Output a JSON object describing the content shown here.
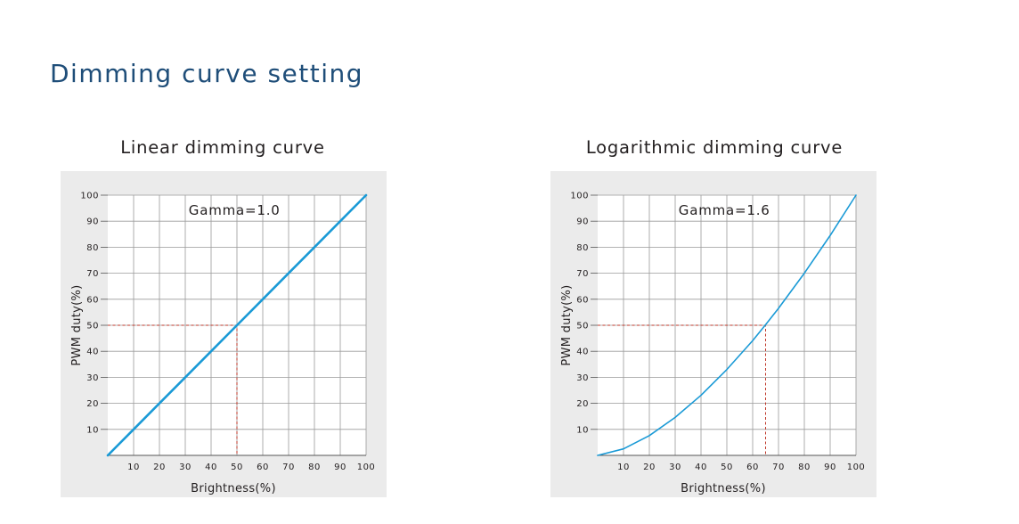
{
  "page": {
    "title": "Dimming curve setting"
  },
  "chart_data": [
    {
      "type": "line",
      "title": "Linear dimming curve",
      "xlabel": "Brightness(%)",
      "ylabel": "PWM duty(%)",
      "annotation": "Gamma=1.0",
      "x_ticks": [
        10,
        20,
        30,
        40,
        50,
        60,
        70,
        80,
        90,
        100
      ],
      "y_ticks": [
        10,
        20,
        30,
        40,
        50,
        60,
        70,
        80,
        90,
        100
      ],
      "xlim": [
        0,
        100
      ],
      "ylim": [
        0,
        100
      ],
      "grid": true,
      "gamma": 1.0,
      "series": [
        {
          "x": [
            0,
            10,
            20,
            30,
            40,
            50,
            60,
            70,
            80,
            90,
            100
          ],
          "y": [
            0,
            10,
            20,
            30,
            40,
            50,
            60,
            70,
            80,
            90,
            100
          ]
        }
      ],
      "reference_point": {
        "x": 50,
        "y": 50
      },
      "colors": {
        "line": "#1a9ad6",
        "reference": "#c0392b",
        "background": "#ebebeb",
        "grid": "#9a9a9a"
      }
    },
    {
      "type": "line",
      "title": "Logarithmic dimming curve",
      "xlabel": "Brightness(%)",
      "ylabel": "PWM duty(%)",
      "annotation": "Gamma=1.6",
      "x_ticks": [
        10,
        20,
        30,
        40,
        50,
        60,
        70,
        80,
        90,
        100
      ],
      "y_ticks": [
        10,
        20,
        30,
        40,
        50,
        60,
        70,
        80,
        90,
        100
      ],
      "xlim": [
        0,
        100
      ],
      "ylim": [
        0,
        100
      ],
      "grid": true,
      "gamma": 1.6,
      "series": [
        {
          "x": [
            0,
            10,
            20,
            30,
            40,
            50,
            60,
            65,
            70,
            80,
            90,
            100
          ],
          "y": [
            0,
            2.5,
            7.6,
            14.6,
            23.1,
            33.0,
            44.1,
            50.2,
            56.5,
            70.0,
            84.5,
            100
          ]
        }
      ],
      "reference_point": {
        "x": 65,
        "y": 50
      },
      "colors": {
        "line": "#1a9ad6",
        "reference": "#c0392b",
        "background": "#ebebeb",
        "grid": "#9a9a9a"
      }
    }
  ]
}
